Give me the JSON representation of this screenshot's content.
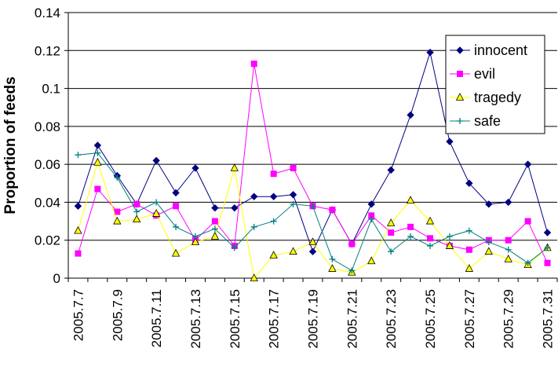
{
  "chart_data": {
    "type": "line",
    "title": "",
    "xlabel": "",
    "ylabel": "Proportion of feeds",
    "ylim": [
      0,
      0.14
    ],
    "yticks": [
      0,
      0.02,
      0.04,
      0.06,
      0.08,
      0.1,
      0.12,
      0.14
    ],
    "ytick_labels": [
      "0",
      "0.02",
      "0.04",
      "0.06",
      "0.08",
      "0.1",
      "0.12",
      "0.14"
    ],
    "grid": "horizontal",
    "legend_position": "top-right",
    "x": [
      "2005.7.7",
      "2005.7.8",
      "2005.7.9",
      "2005.7.10",
      "2005.7.11",
      "2005.7.12",
      "2005.7.13",
      "2005.7.14",
      "2005.7.15",
      "2005.7.16",
      "2005.7.17",
      "2005.7.18",
      "2005.7.19",
      "2005.7.20",
      "2005.7.21",
      "2005.7.22",
      "2005.7.23",
      "2005.7.24",
      "2005.7.25",
      "2005.7.26",
      "2005.7.27",
      "2005.7.28",
      "2005.7.29",
      "2005.7.30",
      "2005.7.31"
    ],
    "xtick_labels": [
      "2005.7.7",
      "2005.7.9",
      "2005.7.11",
      "2005.7.13",
      "2005.7.15",
      "2005.7.17",
      "2005.7.19",
      "2005.7.21",
      "2005.7.23",
      "2005.7.25",
      "2005.7.27",
      "2005.7.29",
      "2005.7.31"
    ],
    "series": [
      {
        "name": "innocent",
        "color": "#000080",
        "marker": "diamond",
        "values": [
          0.038,
          0.07,
          0.054,
          0.039,
          0.062,
          0.045,
          0.058,
          0.037,
          0.037,
          0.043,
          0.043,
          0.044,
          0.014,
          0.036,
          0.018,
          0.039,
          0.057,
          0.086,
          0.119,
          0.072,
          0.05,
          0.039,
          0.04,
          0.06,
          0.024
        ]
      },
      {
        "name": "evil",
        "color": "#ff00ff",
        "marker": "square",
        "values": [
          0.013,
          0.047,
          0.035,
          0.039,
          0.033,
          0.038,
          0.02,
          0.03,
          0.017,
          0.113,
          0.055,
          0.058,
          0.038,
          0.036,
          0.018,
          0.033,
          0.024,
          0.027,
          0.021,
          0.017,
          0.015,
          0.02,
          0.02,
          0.03,
          0.008
        ]
      },
      {
        "name": "tragedy",
        "color": "#ffff00",
        "marker": "triangle",
        "values": [
          0.025,
          0.061,
          0.03,
          0.031,
          0.034,
          0.013,
          0.019,
          0.022,
          0.058,
          0.0,
          0.012,
          0.014,
          0.019,
          0.005,
          0.003,
          0.009,
          0.029,
          0.041,
          0.03,
          0.017,
          0.005,
          0.014,
          0.01,
          0.007,
          0.016
        ]
      },
      {
        "name": "safe",
        "color": "#008080",
        "marker": "plus",
        "values": [
          0.065,
          0.066,
          0.053,
          0.035,
          0.04,
          0.027,
          0.022,
          0.026,
          0.016,
          0.027,
          0.03,
          0.039,
          0.038,
          0.01,
          0.004,
          0.031,
          0.014,
          0.022,
          0.017,
          0.022,
          0.025,
          0.019,
          0.015,
          0.008,
          0.016
        ]
      }
    ]
  }
}
